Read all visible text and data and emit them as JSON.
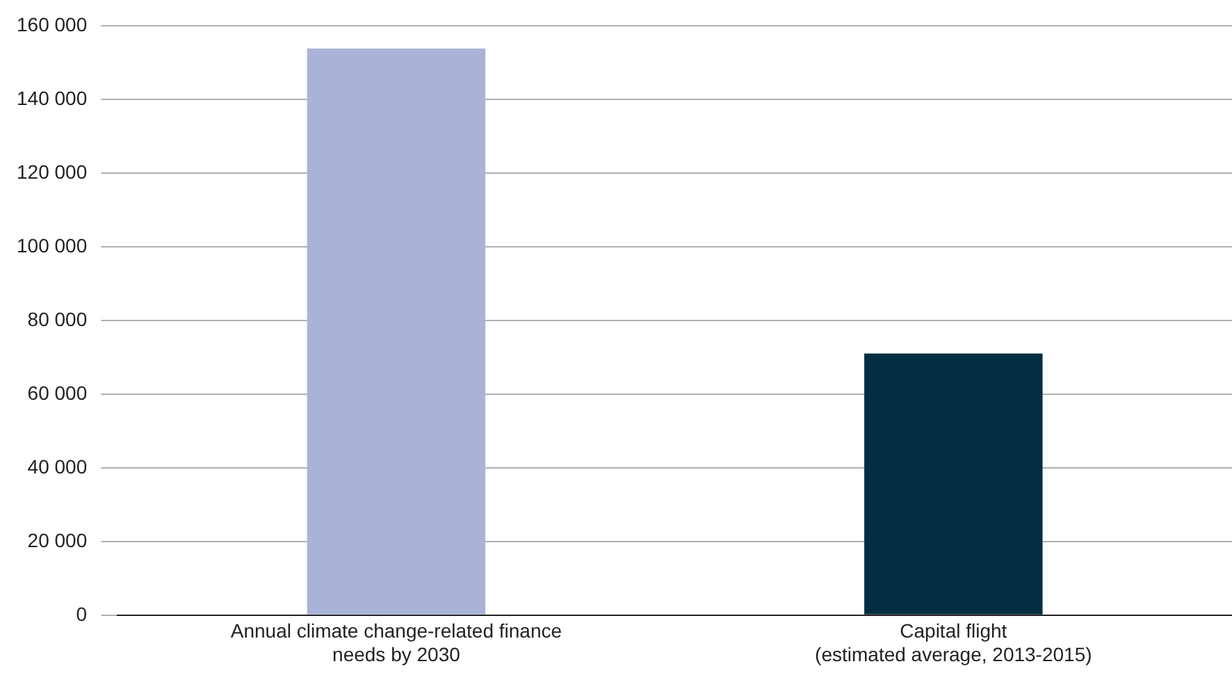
{
  "chart_data": {
    "type": "bar",
    "categories": [
      "Annual climate change-related finance needs by 2030",
      "Capital flight (estimated average, 2013-2015)"
    ],
    "values": [
      153800,
      71000
    ],
    "colors": [
      "#aab3d7",
      "#032d42"
    ],
    "ylim": [
      0,
      160000
    ],
    "yticks": [
      0,
      {
        "value": 20000,
        "label": "20 000"
      },
      {
        "value": 40000,
        "label": "40 000"
      },
      {
        "value": 60000,
        "label": "60 000"
      },
      {
        "value": 80000,
        "label": "80 000"
      },
      {
        "value": 100000,
        "label": "100 000"
      },
      {
        "value": 120000,
        "label": "120 000"
      },
      {
        "value": 140000,
        "label": "140 000"
      },
      {
        "value": 160000,
        "label": "160 000"
      }
    ],
    "grid": "y",
    "legend": false
  }
}
